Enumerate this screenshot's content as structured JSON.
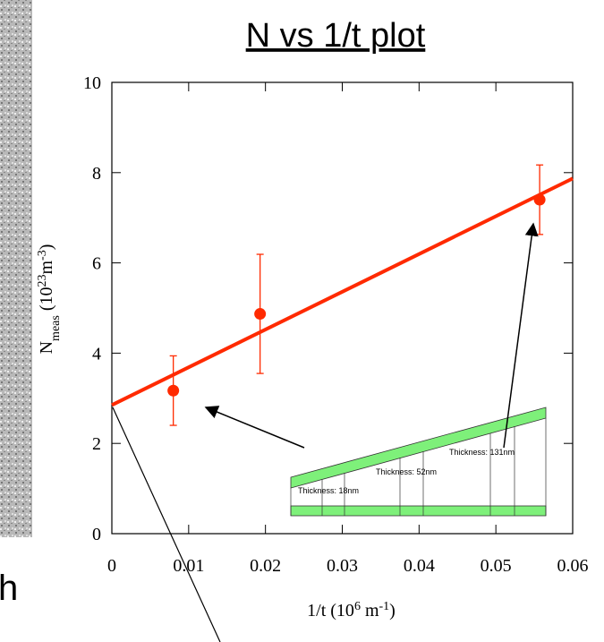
{
  "chart_data": {
    "type": "scatter",
    "title": "N vs 1/t plot",
    "xlabel": [
      "1/t  (10",
      "6",
      " m",
      "-1",
      ")"
    ],
    "ylabel": [
      "N",
      "meas",
      "  (10",
      "23",
      "m",
      "-3",
      ")"
    ],
    "xlim": [
      0,
      0.06
    ],
    "ylim": [
      0,
      10
    ],
    "xticks": [
      0,
      0.01,
      0.02,
      0.03,
      0.04,
      0.05,
      0.06
    ],
    "yticks": [
      0,
      2,
      4,
      6,
      8,
      10
    ],
    "series": [
      {
        "x": [
          0.008,
          0.0193,
          0.0557
        ],
        "values": [
          3.17,
          4.87,
          7.4
        ],
        "errors": [
          0.77,
          1.32,
          0.77
        ],
        "color": "#ff2a00"
      }
    ],
    "fit": {
      "x": [
        0,
        0.06
      ],
      "values": [
        2.85,
        7.87
      ],
      "color": "#ff2a00"
    },
    "inset_labels": [
      "Thickness: 18nm",
      "Thickness: 52nm",
      "Thickness: 131nm"
    ],
    "side_text": "h"
  }
}
